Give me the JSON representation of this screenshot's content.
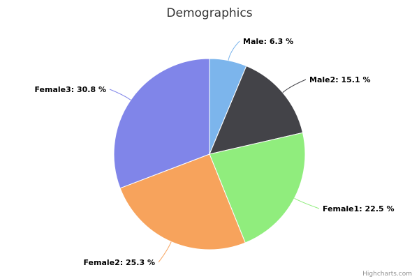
{
  "chart_data": {
    "type": "pie",
    "title": "Demographics",
    "categories": [
      "Male",
      "Male2",
      "Female1",
      "Female2",
      "Female3"
    ],
    "values": [
      6.3,
      15.1,
      22.5,
      25.3,
      30.8
    ],
    "value_suffix": " %",
    "colors": [
      "#7cb5ec",
      "#434348",
      "#90ed7d",
      "#f7a35c",
      "#8085e9"
    ],
    "start_angle_deg": 0,
    "direction": "clockwise",
    "data_labels": [
      "Male: 6.3 %",
      "Male2: 15.1 %",
      "Female1: 22.5 %",
      "Female2: 25.3 %",
      "Female3: 30.8 %"
    ]
  },
  "credits": "Highcharts.com"
}
